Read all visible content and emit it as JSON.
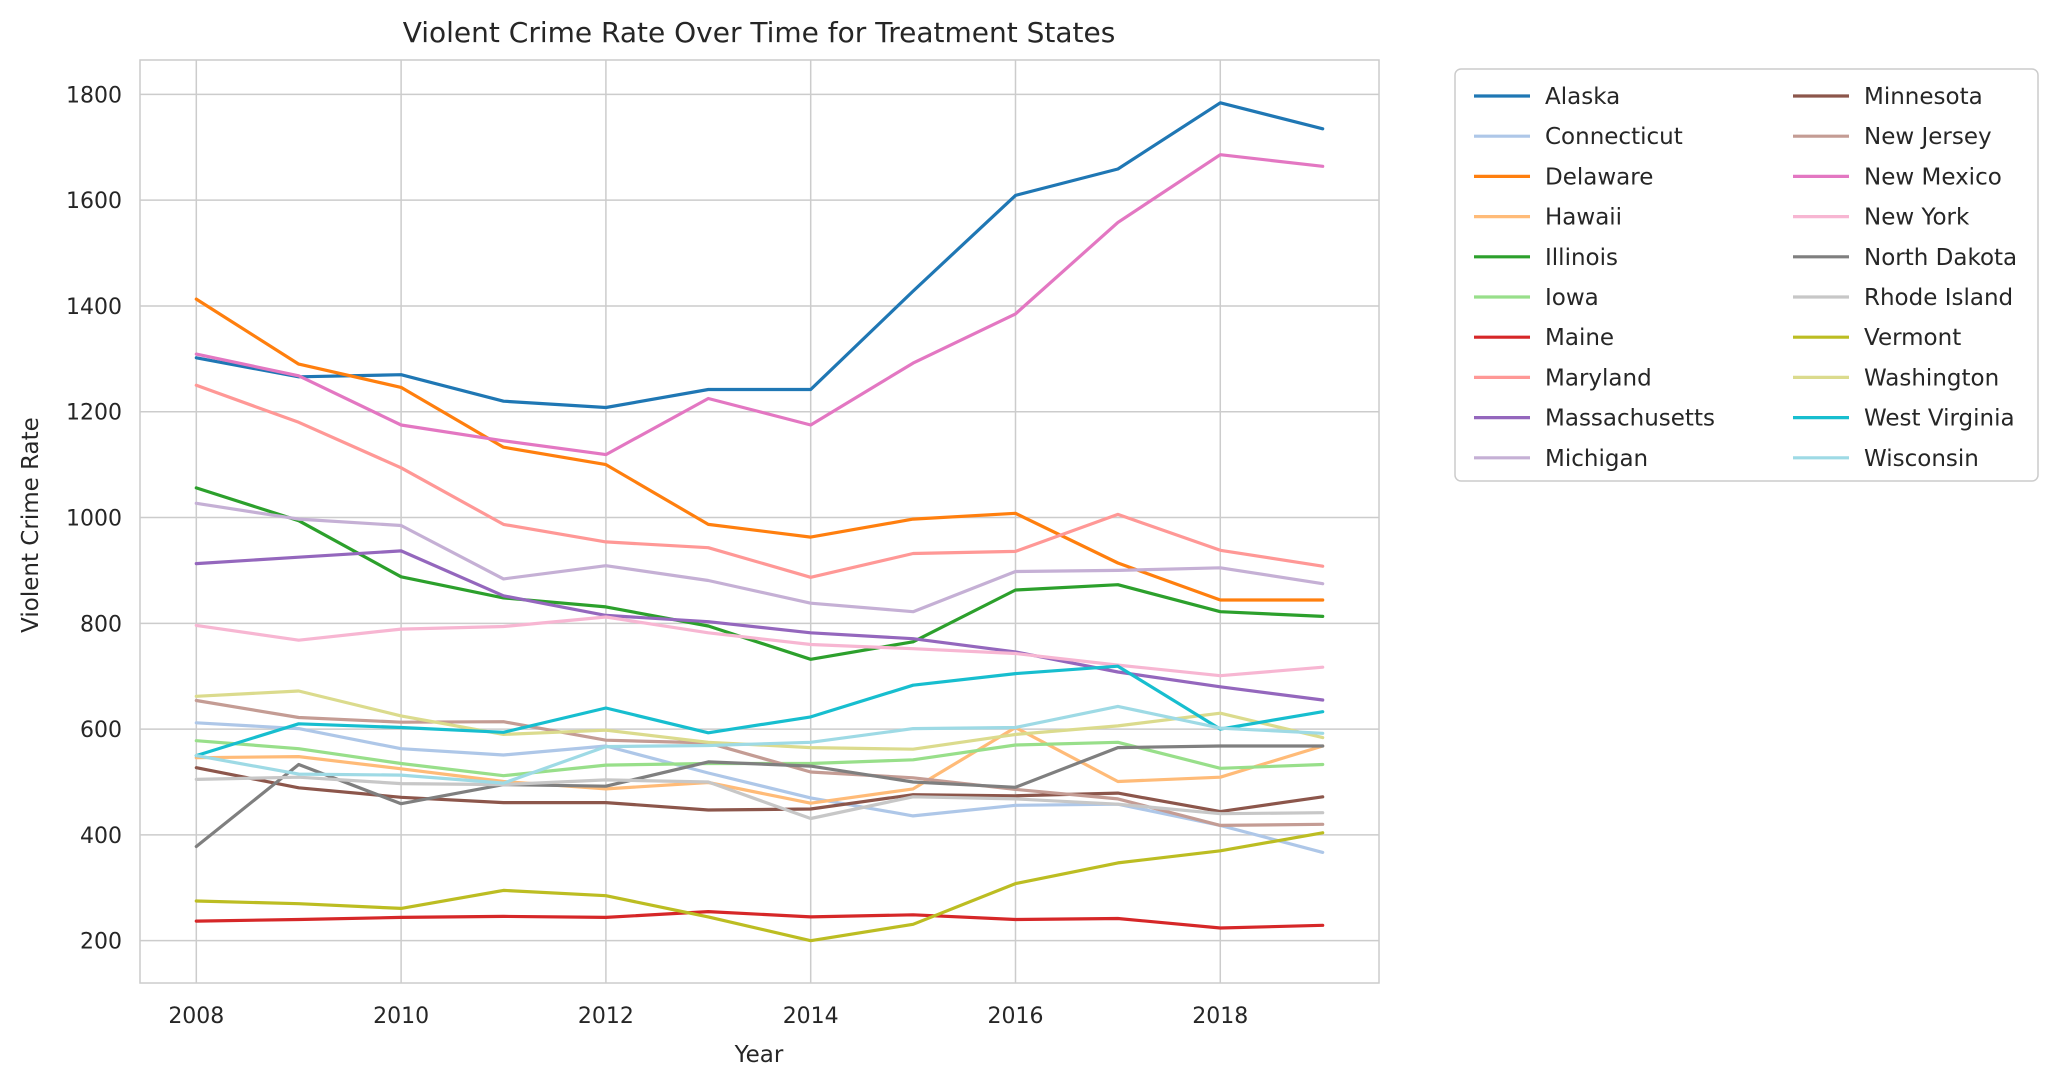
{
  "chart_data": {
    "type": "line",
    "title": "Violent Crime Rate Over Time for Treatment States",
    "xlabel": "Year",
    "ylabel": "Violent Crime Rate",
    "x": [
      2008,
      2009,
      2010,
      2011,
      2012,
      2013,
      2014,
      2015,
      2016,
      2017,
      2018,
      2019
    ],
    "xlim": [
      2007.45,
      2019.55
    ],
    "ylim": [
      120,
      1865
    ],
    "xticks": [
      2008,
      2010,
      2012,
      2014,
      2016,
      2018
    ],
    "yticks": [
      200,
      400,
      600,
      800,
      1000,
      1200,
      1400,
      1600,
      1800
    ],
    "grid": true,
    "legend": "outside-right",
    "series": [
      {
        "name": "Alaska",
        "color": "#1f77b4",
        "values": [
          1302,
          1266,
          1270,
          1220,
          1208,
          1242,
          1242,
          1428,
          1609,
          1659,
          1784,
          1735
        ]
      },
      {
        "name": "Connecticut",
        "color": "#aec7e8",
        "values": [
          612,
          601,
          563,
          551,
          568,
          517,
          470,
          436,
          456,
          458,
          418,
          367
        ]
      },
      {
        "name": "Delaware",
        "color": "#ff7f0e",
        "values": [
          1413,
          1290,
          1246,
          1133,
          1100,
          987,
          963,
          997,
          1008,
          914,
          844,
          844
        ]
      },
      {
        "name": "Hawaii",
        "color": "#ffbb78",
        "values": [
          546,
          548,
          525,
          501,
          487,
          499,
          460,
          487,
          603,
          501,
          509,
          568
        ]
      },
      {
        "name": "Illinois",
        "color": "#2ca02c",
        "values": [
          1056,
          994,
          888,
          848,
          831,
          795,
          732,
          765,
          863,
          873,
          822,
          813
        ]
      },
      {
        "name": "Iowa",
        "color": "#98df8a",
        "values": [
          578,
          563,
          535,
          512,
          532,
          535,
          535,
          542,
          570,
          575,
          526,
          533
        ]
      },
      {
        "name": "Maine",
        "color": "#d62728",
        "values": [
          237,
          240,
          244,
          246,
          244,
          255,
          245,
          249,
          240,
          242,
          224,
          229
        ]
      },
      {
        "name": "Maryland",
        "color": "#ff9896",
        "values": [
          1250,
          1180,
          1094,
          987,
          954,
          943,
          887,
          932,
          936,
          1006,
          938,
          908
        ]
      },
      {
        "name": "Massachusetts",
        "color": "#9467bd",
        "values": [
          913,
          925,
          937,
          852,
          815,
          803,
          782,
          771,
          746,
          708,
          680,
          655
        ]
      },
      {
        "name": "Michigan",
        "color": "#c5b0d5",
        "values": [
          1027,
          997,
          985,
          884,
          909,
          881,
          838,
          822,
          898,
          900,
          905,
          875
        ]
      },
      {
        "name": "Minnesota",
        "color": "#8c564b",
        "values": [
          527,
          489,
          471,
          461,
          461,
          447,
          449,
          476,
          474,
          479,
          444,
          472
        ]
      },
      {
        "name": "New Jersey",
        "color": "#c49c94",
        "values": [
          654,
          622,
          613,
          614,
          579,
          574,
          519,
          508,
          486,
          468,
          418,
          420
        ]
      },
      {
        "name": "New Mexico",
        "color": "#e377c2",
        "values": [
          1309,
          1268,
          1175,
          1145,
          1119,
          1225,
          1175,
          1292,
          1385,
          1558,
          1686,
          1664
        ]
      },
      {
        "name": "New York",
        "color": "#f7b6d2",
        "values": [
          796,
          768,
          789,
          794,
          812,
          782,
          760,
          752,
          743,
          721,
          701,
          717
        ]
      },
      {
        "name": "North Dakota",
        "color": "#7f7f7f",
        "values": [
          378,
          533,
          459,
          495,
          492,
          538,
          530,
          500,
          490,
          565,
          568,
          568
        ]
      },
      {
        "name": "Rhode Island",
        "color": "#c7c7c7",
        "values": [
          505,
          509,
          497,
          495,
          504,
          500,
          431,
          472,
          468,
          458,
          440,
          442
        ]
      },
      {
        "name": "Vermont",
        "color": "#bcbd22",
        "values": [
          275,
          270,
          261,
          295,
          285,
          245,
          200,
          231,
          308,
          347,
          370,
          404
        ]
      },
      {
        "name": "Washington",
        "color": "#dbdb8d",
        "values": [
          662,
          672,
          625,
          590,
          598,
          575,
          565,
          562,
          590,
          606,
          630,
          584
        ]
      },
      {
        "name": "West Virginia",
        "color": "#17becf",
        "values": [
          550,
          610,
          603,
          594,
          640,
          593,
          623,
          683,
          705,
          719,
          600,
          633
        ]
      },
      {
        "name": "Wisconsin",
        "color": "#9edae5",
        "values": [
          550,
          515,
          513,
          498,
          567,
          569,
          575,
          601,
          603,
          643,
          602,
          592
        ]
      }
    ]
  }
}
